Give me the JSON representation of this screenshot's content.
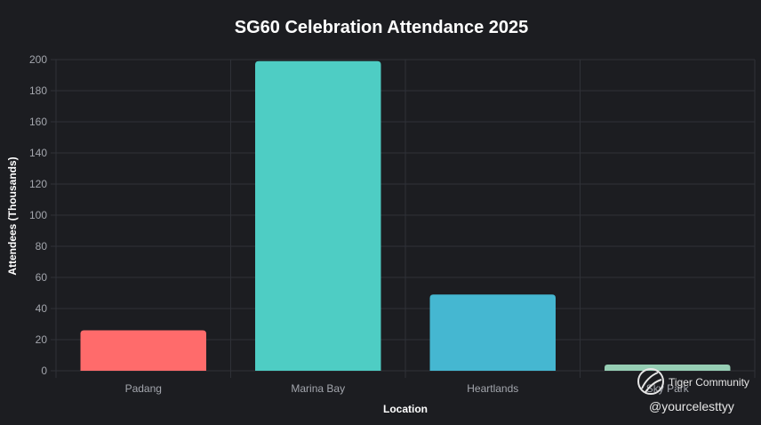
{
  "chart_data": {
    "type": "bar",
    "title": "SG60 Celebration Attendance 2025",
    "xlabel": "Location",
    "ylabel": "Attendees (Thousands)",
    "categories": [
      "Padang",
      "Marina Bay",
      "Heartlands",
      "Sky Park"
    ],
    "values": [
      26,
      199,
      49,
      4
    ],
    "colors": [
      "#ff6b6b",
      "#4ecdc4",
      "#45b7d1",
      "#96ceb4"
    ],
    "ylim": [
      0,
      200
    ],
    "yticks": [
      "0",
      "20",
      "40",
      "60",
      "80",
      "100",
      "120",
      "140",
      "160",
      "180",
      "200"
    ],
    "grid": true,
    "legend": "none"
  },
  "theme": {
    "background": "#1c1d21",
    "grid_color": "#2f3137",
    "title_color": "#ffffff",
    "tick_color": "#a3a6ad"
  },
  "watermark": {
    "community": "Tiger Community",
    "handle": "@yourcelesttyy",
    "icon": "tiger-logo-icon"
  }
}
